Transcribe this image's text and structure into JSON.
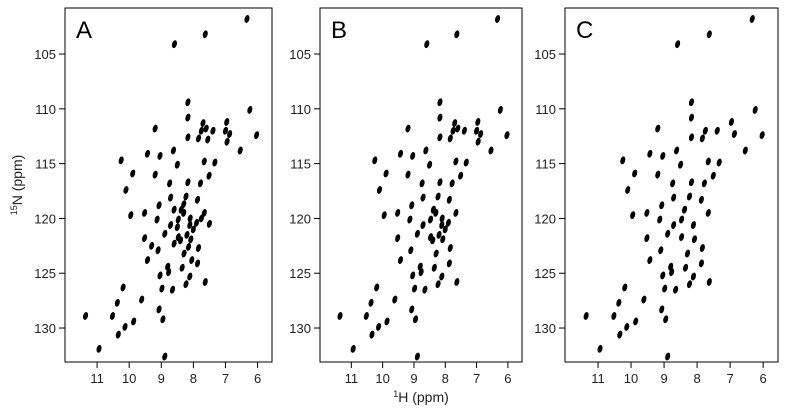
{
  "chart_data": [
    {
      "type": "scatter",
      "title": "A",
      "color": "#000000",
      "y_label": {
        "sup": "15",
        "text": "N (ppm)"
      },
      "xlim": [
        12,
        5.55
      ],
      "ylim": [
        133.1,
        100.8
      ],
      "xticks": [
        11,
        10,
        9,
        8,
        7,
        6
      ],
      "yticks": [
        105,
        110,
        115,
        120,
        125,
        130
      ],
      "x": [
        6.33,
        7.63,
        8.59,
        8.17,
        8.17,
        6.24,
        6.96,
        6.87,
        7.39,
        7.75,
        6.03,
        7.84,
        9.19,
        8.17,
        8.62,
        9.04,
        9.43,
        10.25,
        8.5,
        7.66,
        7.51,
        7.33,
        6.54,
        9.89,
        9.19,
        8.74,
        8.17,
        7.78,
        10.1,
        8.71,
        8.23,
        7.87,
        7.66,
        8.38,
        9.07,
        9.52,
        8.47,
        8.11,
        8.71,
        9.13,
        9.95,
        8.08,
        8.47,
        8.89,
        9.52,
        7.84,
        8.29,
        9.1,
        9.43,
        7.87,
        8.8,
        8.35,
        8.11,
        7.63,
        9.04,
        8.23,
        8.65,
        8.98,
        10.19,
        10.37,
        9.61,
        9.07,
        8.95,
        9.86,
        10.13,
        10.34,
        10.52,
        11.36,
        10.94,
        8.89,
        8.77,
        8.3,
        8.1,
        8.0,
        8.2,
        8.4,
        8.6,
        8.5,
        7.9,
        8.15,
        7.75,
        8.3,
        8.6,
        7.0,
        6.95,
        7.6,
        7.55,
        7.7,
        8.05,
        9.3,
        7.5
      ],
      "y": [
        101.8,
        103.2,
        104.1,
        109.4,
        110.8,
        110.1,
        111.2,
        112.3,
        112.0,
        112.0,
        112.4,
        112.7,
        111.8,
        112.6,
        113.8,
        114.3,
        114.1,
        114.7,
        115.1,
        114.8,
        116.1,
        114.9,
        113.8,
        115.9,
        116.0,
        116.8,
        116.7,
        116.8,
        117.4,
        118.1,
        118.0,
        118.3,
        119.5,
        119.2,
        118.8,
        119.5,
        120.1,
        120.6,
        120.6,
        120.1,
        119.7,
        121.9,
        121.7,
        121.4,
        121.8,
        122.7,
        123.2,
        122.9,
        123.8,
        124.1,
        124.4,
        124.5,
        125.3,
        125.8,
        125.2,
        126.0,
        126.5,
        126.4,
        126.3,
        127.7,
        127.4,
        128.3,
        129.2,
        129.4,
        129.9,
        130.6,
        128.9,
        128.9,
        131.9,
        132.6,
        124.9,
        119.5,
        120.0,
        121.0,
        121.5,
        122.0,
        122.3,
        120.8,
        120.4,
        122.6,
        120.0,
        118.7,
        119.2,
        112.0,
        113.0,
        111.8,
        112.8,
        111.3,
        123.8,
        122.5,
        120.5
      ]
    },
    {
      "type": "scatter",
      "title": "B",
      "color": "#000000",
      "x_label": {
        "sup": "1",
        "text": "H (ppm)"
      },
      "xlim": [
        12,
        5.55
      ],
      "ylim": [
        133.1,
        100.8
      ],
      "xticks": [
        11,
        10,
        9,
        8,
        7,
        6
      ],
      "yticks": [
        105,
        110,
        115,
        120,
        125,
        130
      ],
      "x": [
        6.33,
        7.63,
        8.59,
        8.17,
        8.17,
        6.24,
        6.96,
        6.87,
        7.39,
        7.75,
        6.03,
        7.84,
        9.19,
        8.17,
        8.62,
        9.04,
        9.43,
        10.25,
        8.5,
        7.66,
        7.51,
        7.33,
        6.54,
        9.89,
        9.19,
        8.74,
        8.17,
        7.78,
        10.1,
        8.71,
        8.23,
        7.87,
        7.66,
        8.38,
        9.07,
        9.52,
        8.47,
        8.11,
        8.71,
        9.13,
        9.95,
        8.08,
        8.47,
        8.89,
        9.52,
        7.84,
        8.29,
        9.1,
        9.43,
        7.87,
        8.8,
        8.35,
        8.11,
        7.63,
        9.04,
        8.23,
        8.65,
        8.98,
        10.19,
        10.37,
        9.61,
        9.07,
        8.95,
        9.86,
        10.13,
        10.34,
        10.52,
        11.36,
        10.94,
        8.89,
        8.77,
        8.3,
        8.1,
        8.0,
        8.2,
        8.4,
        7.9,
        7.0,
        6.95,
        7.6,
        7.7
      ],
      "y": [
        101.8,
        103.2,
        104.1,
        109.4,
        110.8,
        110.1,
        111.2,
        112.3,
        112.0,
        112.0,
        112.4,
        112.7,
        111.8,
        112.6,
        113.8,
        114.3,
        114.1,
        114.7,
        115.1,
        114.8,
        116.1,
        114.9,
        113.8,
        115.9,
        116.0,
        116.8,
        116.7,
        116.8,
        117.4,
        118.1,
        118.0,
        118.3,
        119.5,
        119.2,
        118.8,
        119.5,
        120.1,
        120.6,
        120.6,
        120.1,
        119.7,
        121.9,
        121.7,
        121.4,
        121.8,
        122.7,
        123.2,
        122.9,
        123.8,
        124.1,
        124.4,
        124.5,
        125.3,
        125.8,
        125.2,
        126.0,
        126.5,
        126.4,
        126.3,
        127.7,
        127.4,
        128.3,
        129.2,
        129.4,
        129.9,
        130.6,
        128.9,
        128.9,
        131.9,
        132.6,
        124.9,
        119.5,
        120.0,
        121.0,
        121.5,
        122.0,
        120.4,
        112.0,
        113.0,
        111.8,
        111.3
      ]
    },
    {
      "type": "scatter",
      "title": "C",
      "color": "#000000",
      "xlim": [
        12,
        5.55
      ],
      "ylim": [
        133.1,
        100.8
      ],
      "xticks": [
        11,
        10,
        9,
        8,
        7,
        6
      ],
      "yticks": [
        105,
        110,
        115,
        120,
        125,
        130
      ],
      "x": [
        6.33,
        7.63,
        8.59,
        8.17,
        8.17,
        6.24,
        6.96,
        6.87,
        7.39,
        7.75,
        6.03,
        7.84,
        9.19,
        8.17,
        8.62,
        9.04,
        9.43,
        10.25,
        8.5,
        7.66,
        7.51,
        7.33,
        6.54,
        9.89,
        9.19,
        8.74,
        8.17,
        7.78,
        10.1,
        8.71,
        8.23,
        7.87,
        7.66,
        8.38,
        9.07,
        9.52,
        8.47,
        8.11,
        8.71,
        9.13,
        9.95,
        8.08,
        8.47,
        8.89,
        9.52,
        7.84,
        8.29,
        9.1,
        9.43,
        7.87,
        8.8,
        8.35,
        8.11,
        7.63,
        9.04,
        8.23,
        8.65,
        8.98,
        10.19,
        10.37,
        9.61,
        9.07,
        8.95,
        9.86,
        10.13,
        10.34,
        10.52,
        11.36,
        10.94,
        8.89,
        8.77
      ],
      "y": [
        101.8,
        103.2,
        104.1,
        109.4,
        110.8,
        110.1,
        111.2,
        112.3,
        112.0,
        112.0,
        112.4,
        112.7,
        111.8,
        112.6,
        113.8,
        114.3,
        114.1,
        114.7,
        115.1,
        114.8,
        116.1,
        114.9,
        113.8,
        115.9,
        116.0,
        116.8,
        116.7,
        116.8,
        117.4,
        118.1,
        118.0,
        118.3,
        119.5,
        119.2,
        118.8,
        119.5,
        120.1,
        120.6,
        120.6,
        120.1,
        119.7,
        121.9,
        121.7,
        121.4,
        121.8,
        122.7,
        123.2,
        122.9,
        123.8,
        124.1,
        124.4,
        124.5,
        125.3,
        125.8,
        125.2,
        126.0,
        126.5,
        126.4,
        126.3,
        127.7,
        127.4,
        128.3,
        129.2,
        129.4,
        129.9,
        130.6,
        128.9,
        128.9,
        131.9,
        132.6,
        124.9
      ]
    }
  ]
}
